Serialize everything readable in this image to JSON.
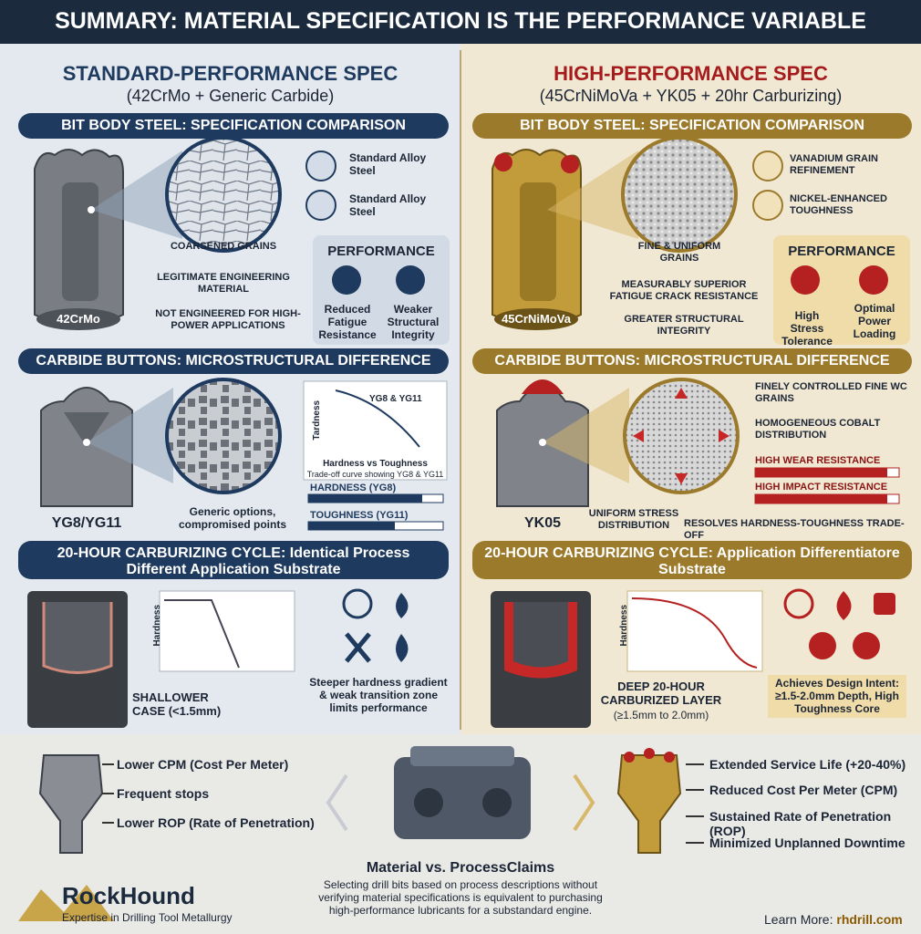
{
  "title": "SUMMARY: MATERIAL SPECIFICATION IS THE PERFORMANCE VARIABLE",
  "left": {
    "heading": "STANDARD-PERFORMANCE SPEC",
    "subheading": "(42CrMo + Generic Carbide)",
    "steel": {
      "title": "BIT BODY STEEL: SPECIFICATION COMPARISON",
      "bit_label": "42CrMo",
      "grain_label": "COARSENED GRAINS",
      "notes": [
        "LEGITIMATE ENGINEERING MATERIAL",
        "NOT ENGINEERED FOR HIGH-POWER APPLICATIONS"
      ],
      "features": [
        "Standard Alloy Steel",
        "Standard Alloy Steel"
      ]
    },
    "performance": {
      "title": "PERFORMANCE",
      "items": [
        "Reduced Fatigue Resistance",
        "Weaker Structural Integrity"
      ]
    },
    "carbide": {
      "title": "CARBIDE BUTTONS: MICROSTRUCTURAL DIFFERENCE",
      "button_label": "YG8/YG11",
      "note": "Generic options, compromised points",
      "graph": {
        "y_label": "Tardness",
        "curve_label": "YG8 & YG11",
        "x_label": "Hardness vs Toughness",
        "caption": "Trade-off curve showing YG8 & YG11"
      },
      "bars": [
        "HARDNESS (YG8)",
        "TOUGHNESS (YG11)"
      ]
    },
    "carburizing": {
      "title": "20-HOUR CARBURIZING CYCLE: Identical Process Different Application Substrate",
      "graph": {
        "y_label": "Hardness"
      },
      "case_label": "SHALLOWER CASE (<1.5mm)",
      "note": "Steeper hardness gradient & weak transition zone limits performance"
    },
    "outcomes": [
      "Lower CPM (Cost Per Meter)",
      "Frequent stops",
      "Lower ROP (Rate of Penetration)"
    ]
  },
  "right": {
    "heading": "HIGH-PERFORMANCE SPEC",
    "subheading": "(45CrNiMoVa + YK05 + 20hr Carburizing)",
    "steel": {
      "title": "BIT BODY STEEL: SPECIFICATION COMPARISON",
      "bit_label": "45CrNiMoVa",
      "grain_label": "FINE & UNIFORM GRAINS",
      "notes": [
        "MEASURABLY SUPERIOR FATIGUE CRACK RESISTANCE",
        "GREATER STRUCTURAL INTEGRITY"
      ],
      "features": [
        "VANADIUM GRAIN REFINEMENT",
        "NICKEL-ENHANCED TOUGHNESS"
      ]
    },
    "performance": {
      "title": "PERFORMANCE",
      "items": [
        "High Stress Tolerance",
        "Optimal Power Loading"
      ]
    },
    "carbide": {
      "title": "CARBIDE BUTTONS: MICROSTRUCTURAL DIFFERENCE",
      "button_label": "YK05",
      "callouts": [
        "FINELY CONTROLLED FINE WC GRAINS",
        "HOMOGENEOUS COBALT DISTRIBUTION"
      ],
      "bars": [
        "HIGH WEAR RESISTANCE",
        "HIGH IMPACT RESISTANCE"
      ],
      "stress_label": "UNIFORM STRESS DISTRIBUTION",
      "resolves_label": "RESOLVES HARDNESS-TOUGHNESS TRADE-OFF"
    },
    "carburizing": {
      "title": "20-HOUR CARBURIZING CYCLE: Application Differentiatore Substrate",
      "graph": {
        "y_label": "Hardness"
      },
      "layer_label": "DEEP 20-HOUR CARBURIZED LAYER",
      "layer_sub": "(≥1.5mm to 2.0mm)",
      "note": "Achieves Design Intent: ≥1.5-2.0mm Depth, High Toughness Core"
    },
    "outcomes": [
      "Extended Service Life (+20-40%)",
      "Reduced Cost Per Meter (CPM)",
      "Sustained Rate of Penetration (ROP)",
      "Minimized Unplanned Downtime"
    ]
  },
  "center": {
    "title": "Material vs. ProcessClaims",
    "text": "Selecting drill bits based on process descriptions without verifying material specifications is equivalent to purchasing high-performance lubricants for a substandard engine."
  },
  "brand": {
    "name": "RockHound",
    "tagline": "Expertise in Drilling Tool Metallurgy"
  },
  "learn_more": {
    "label": "Learn More:",
    "link": "rhdrill.com"
  }
}
